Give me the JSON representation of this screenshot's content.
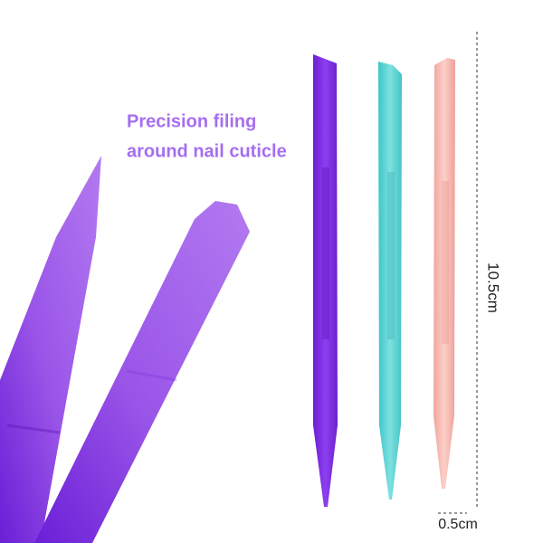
{
  "caption": {
    "line1": "Precision filing",
    "line2": "around nail cuticle"
  },
  "dimensions": {
    "length": "10.5cm",
    "width": "0.5cm"
  }
}
